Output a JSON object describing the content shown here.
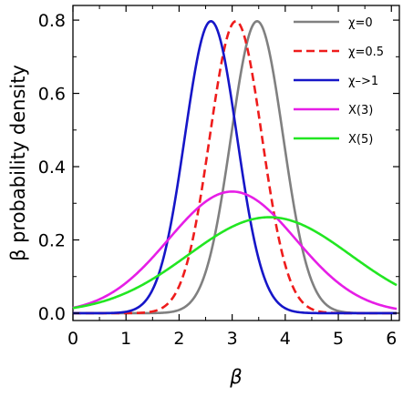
{
  "chart_data": {
    "type": "line",
    "title": "",
    "xlabel": "β",
    "ylabel": "β probability density",
    "xlim": [
      0,
      6.15
    ],
    "ylim": [
      -0.02,
      0.84
    ],
    "x_ticks": [
      0,
      1,
      2,
      3,
      4,
      5,
      6
    ],
    "y_ticks": [
      0.0,
      0.2,
      0.4,
      0.6,
      0.8
    ],
    "y_tick_labels": [
      "0.0",
      "0.2",
      "0.4",
      "0.6",
      "0.8"
    ],
    "grid": false,
    "legend_position": "top-right",
    "series": [
      {
        "name": "χ=0",
        "color": "#808080",
        "dash": "solid",
        "mu": 3.47,
        "sigma": 0.49,
        "peak": 0.797
      },
      {
        "name": "χ=0.5",
        "color": "#ee1c1c",
        "dash": "dashed",
        "mu": 3.07,
        "sigma": 0.49,
        "peak": 0.797
      },
      {
        "name": "χ–>1",
        "color": "#1616c8",
        "dash": "solid",
        "mu": 2.6,
        "sigma": 0.49,
        "peak": 0.797
      },
      {
        "name": "X(3)",
        "color": "#e61ee6",
        "dash": "solid",
        "mu": 3.0,
        "sigma": 1.2,
        "peak": 0.332
      },
      {
        "name": "X(5)",
        "color": "#22e622",
        "dash": "solid",
        "mu": 3.7,
        "sigma": 1.53,
        "peak": 0.262
      }
    ]
  }
}
